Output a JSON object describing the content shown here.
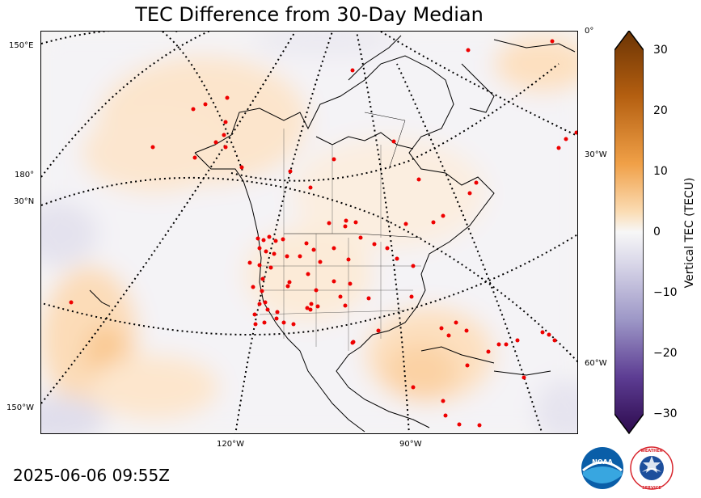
{
  "title": "TEC Difference from 30-Day Median",
  "timestamp": "2025-06-06 09:55Z",
  "graticule_labels": {
    "left": [
      "150°E",
      "180°",
      "30°N",
      "150°W"
    ],
    "right": [
      "0°",
      "30°W",
      "60°W"
    ],
    "bottom": [
      "120°W",
      "90°W"
    ]
  },
  "colorbar": {
    "label": "Vertical TEC (TECU)",
    "ticks": [
      "30",
      "20",
      "10",
      "0",
      "−10",
      "−20",
      "−30"
    ],
    "min": -30,
    "max": 30,
    "colors": {
      "positive_max": "#6b3404",
      "positive_mid": "#f0a047",
      "neutral": "#f7f7f7",
      "negative_mid": "#9c96c6",
      "negative_max": "#2d0a4e"
    }
  },
  "map_colors": {
    "station_dot": "#ee0000",
    "coastline": "#000000",
    "graticule": "#000000"
  },
  "logos": {
    "noaa_text": "NOAA",
    "nws_text": "NATIONAL WEATHER SERVICE"
  }
}
